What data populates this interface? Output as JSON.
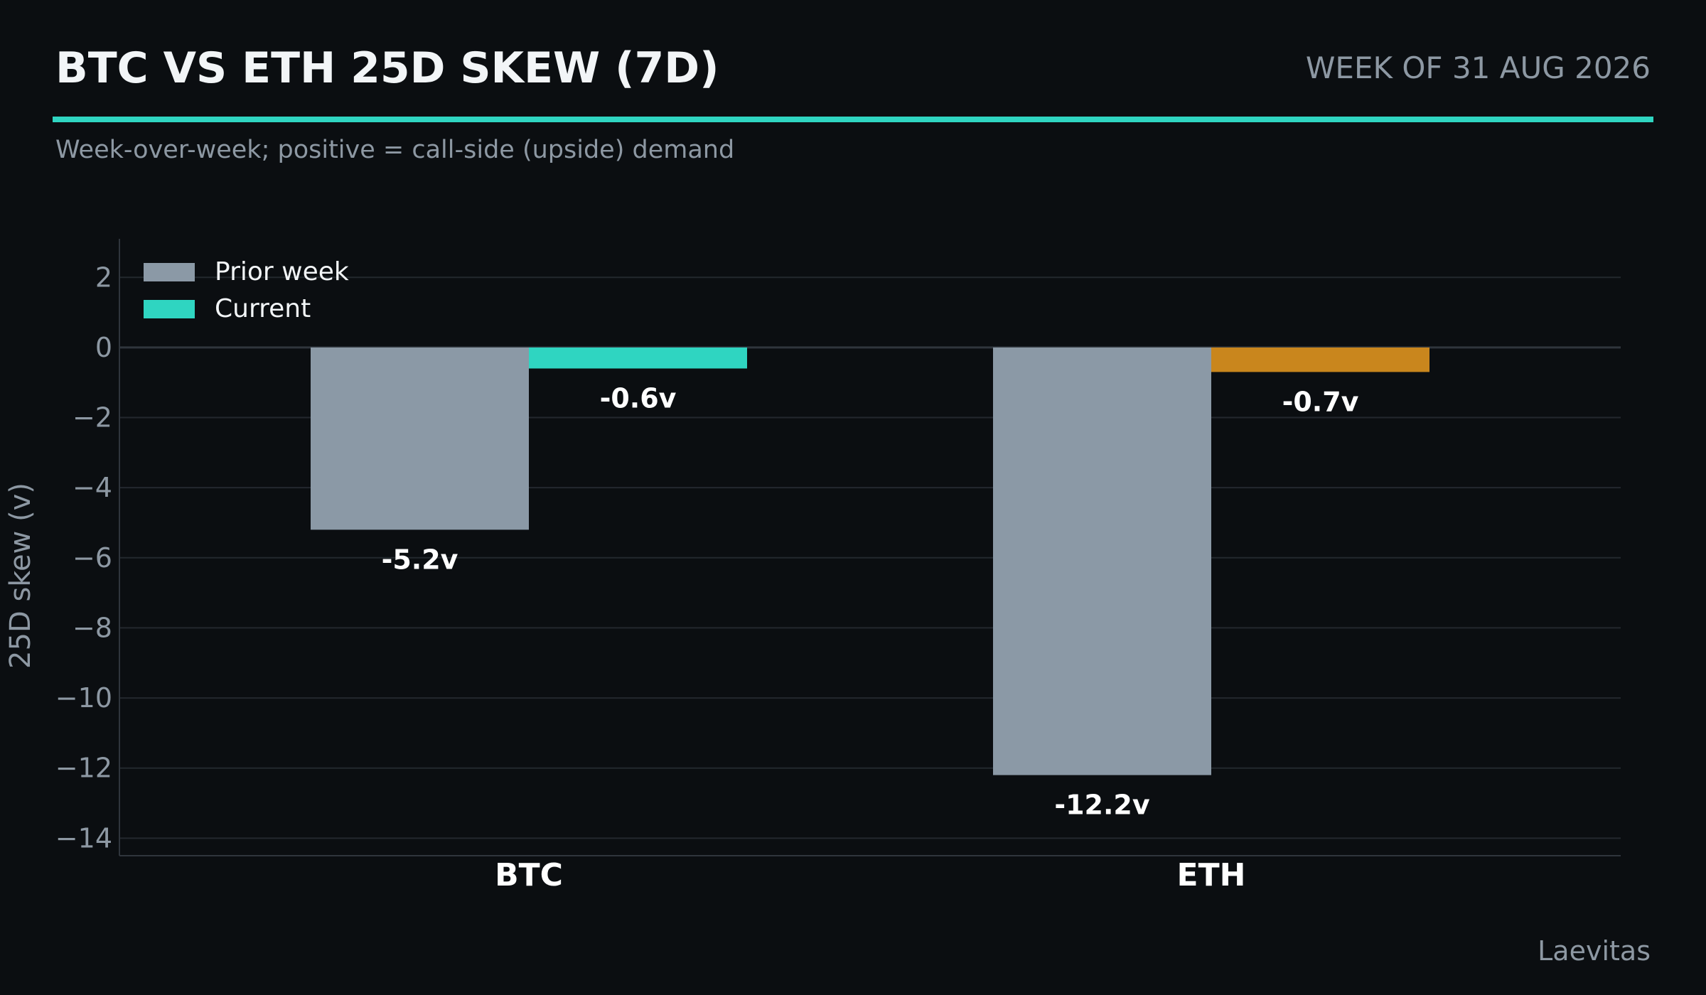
{
  "header": {
    "title": "BTC VS ETH 25D SKEW (7D)",
    "week_label": "WEEK OF 31 AUG 2026",
    "subtitle": "Week-over-week; positive = call-side (upside) demand"
  },
  "footer": {
    "source": "Laevitas"
  },
  "colors": {
    "background": "#0b0e11",
    "accent": "#2fd5c1",
    "prior_week": "#8b99a6",
    "current": "#2fd5c1",
    "current_eth": "#c9861d",
    "grid": "#23282e",
    "muted_text": "#8d98a3"
  },
  "chart_data": {
    "type": "bar",
    "categories": [
      "BTC",
      "ETH"
    ],
    "series": [
      {
        "name": "Prior week",
        "values": [
          -5.2,
          -12.2
        ],
        "labels": [
          "-5.2v",
          "-12.2v"
        ]
      },
      {
        "name": "Current",
        "values": [
          -0.6,
          -0.7
        ],
        "labels": [
          "-0.6v",
          "-0.7v"
        ]
      }
    ],
    "ylabel": "25D skew (v)",
    "xlabel": "",
    "ylim": [
      -14.5,
      3.1
    ],
    "yticks": [
      2,
      0,
      -2,
      -4,
      -6,
      -8,
      -10,
      -12,
      -14
    ],
    "ytick_labels": [
      "2",
      "0",
      "−2",
      "−4",
      "−6",
      "−8",
      "−10",
      "−12",
      "−14"
    ],
    "grid": true,
    "legend_position": "top-left"
  }
}
